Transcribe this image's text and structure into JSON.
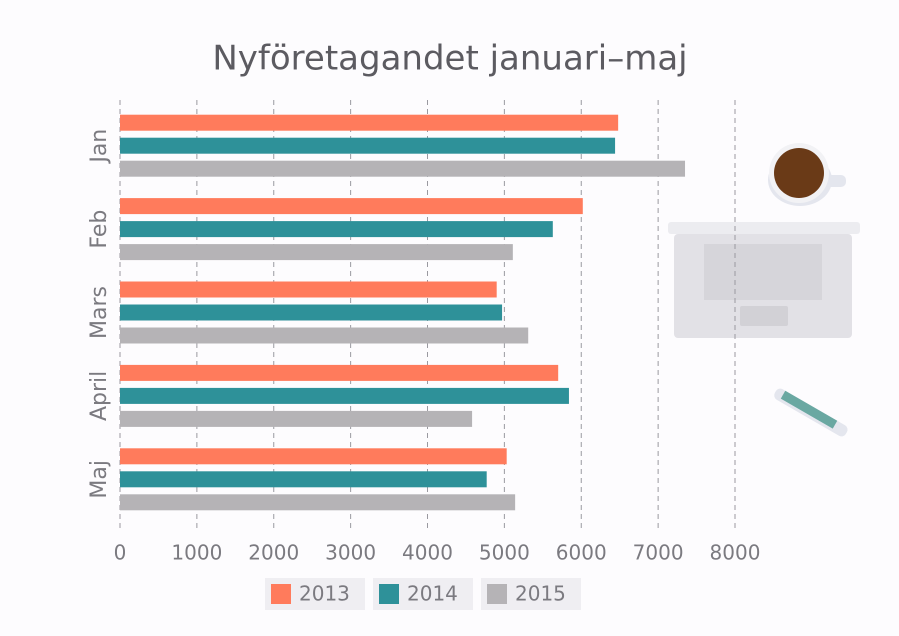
{
  "chart_data": {
    "type": "barh",
    "title": "Nyföretagandet januari–maj",
    "categories": [
      "Jan",
      "Feb",
      "Mars",
      "April",
      "Maj"
    ],
    "series": [
      {
        "name": "2013",
        "color": "#ff7b5c",
        "values": [
          6480,
          6020,
          4900,
          5700,
          5030
        ]
      },
      {
        "name": "2014",
        "color": "#2e9199",
        "values": [
          6440,
          5630,
          4970,
          5840,
          4770
        ]
      },
      {
        "name": "2015",
        "color": "#b5b3b6",
        "values": [
          7350,
          5110,
          5310,
          4580,
          5140
        ]
      }
    ],
    "xlim": [
      0,
      8000
    ],
    "xticks": [
      0,
      1000,
      2000,
      3000,
      4000,
      5000,
      6000,
      7000,
      8000
    ],
    "grid": true
  }
}
